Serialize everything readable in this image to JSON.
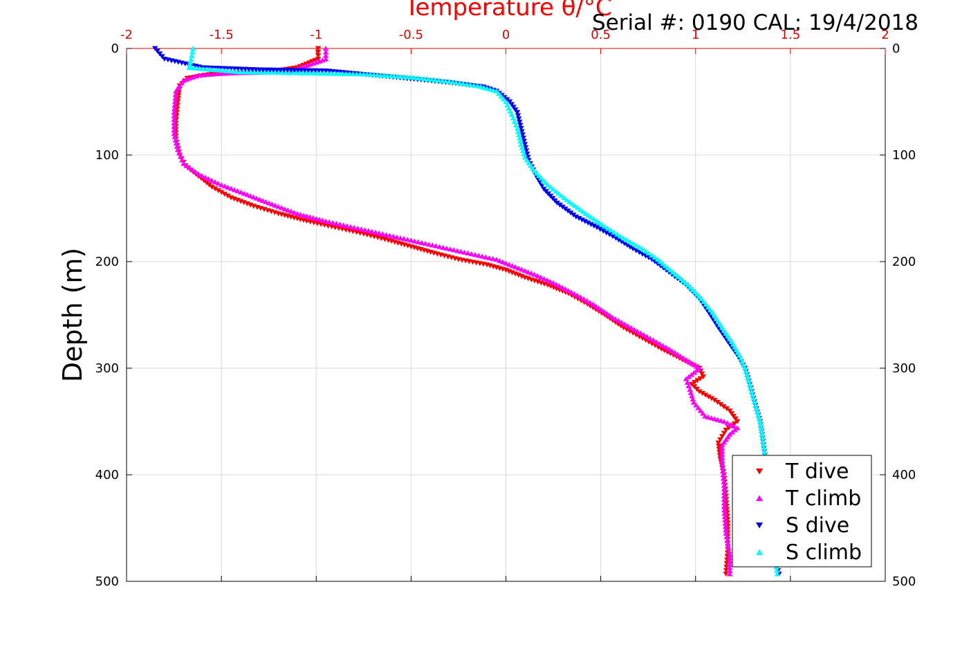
{
  "chart_data": {
    "type": "scatter",
    "title": "Temperature θ/°C",
    "annotation": "Serial #: 0190  CAL: 19/4/2018",
    "xlabel": "Temperature θ/°C",
    "ylabel": "Depth (m)",
    "xlim": [
      -2,
      2
    ],
    "ylim": [
      0,
      500
    ],
    "y_reversed": true,
    "x_axis_position": "top",
    "xticks": [
      "-2",
      "-1.5",
      "-1",
      "-0.5",
      "0",
      "0.5",
      "1",
      "1.5",
      "2"
    ],
    "yticks": [
      "0",
      "100",
      "200",
      "300",
      "400",
      "500"
    ],
    "grid": true,
    "legend_position": "bottom-right",
    "series": [
      {
        "name": "T dive",
        "marker": "triangle-down",
        "color": "#ff0000",
        "points": [
          [
            -0.99,
            0
          ],
          [
            -0.99,
            10
          ],
          [
            -1.1,
            18
          ],
          [
            -1.25,
            22
          ],
          [
            -1.55,
            24
          ],
          [
            -1.68,
            28
          ],
          [
            -1.72,
            35
          ],
          [
            -1.73,
            50
          ],
          [
            -1.74,
            70
          ],
          [
            -1.74,
            85
          ],
          [
            -1.72,
            100
          ],
          [
            -1.69,
            110
          ],
          [
            -1.62,
            120
          ],
          [
            -1.55,
            130
          ],
          [
            -1.45,
            140
          ],
          [
            -1.33,
            148
          ],
          [
            -1.2,
            155
          ],
          [
            -1.05,
            162
          ],
          [
            -0.9,
            168
          ],
          [
            -0.75,
            174
          ],
          [
            -0.62,
            180
          ],
          [
            -0.5,
            186
          ],
          [
            -0.38,
            192
          ],
          [
            -0.25,
            198
          ],
          [
            -0.1,
            203
          ],
          [
            0.0,
            208
          ],
          [
            0.1,
            215
          ],
          [
            0.22,
            222
          ],
          [
            0.33,
            230
          ],
          [
            0.43,
            240
          ],
          [
            0.52,
            250
          ],
          [
            0.62,
            262
          ],
          [
            0.72,
            272
          ],
          [
            0.82,
            282
          ],
          [
            0.93,
            292
          ],
          [
            1.02,
            300
          ],
          [
            1.04,
            308
          ],
          [
            0.98,
            315
          ],
          [
            1.02,
            322
          ],
          [
            1.1,
            330
          ],
          [
            1.18,
            340
          ],
          [
            1.22,
            350
          ],
          [
            1.16,
            358
          ],
          [
            1.12,
            370
          ],
          [
            1.13,
            385
          ],
          [
            1.15,
            400
          ],
          [
            1.16,
            420
          ],
          [
            1.17,
            445
          ],
          [
            1.17,
            470
          ],
          [
            1.16,
            493
          ]
        ]
      },
      {
        "name": "T climb",
        "marker": "triangle-up",
        "color": "#ff00ff",
        "points": [
          [
            -0.95,
            0
          ],
          [
            -0.95,
            10
          ],
          [
            -1.15,
            22
          ],
          [
            -1.45,
            23
          ],
          [
            -1.62,
            25
          ],
          [
            -1.7,
            30
          ],
          [
            -1.74,
            40
          ],
          [
            -1.75,
            60
          ],
          [
            -1.75,
            80
          ],
          [
            -1.73,
            95
          ],
          [
            -1.7,
            108
          ],
          [
            -1.62,
            118
          ],
          [
            -1.5,
            128
          ],
          [
            -1.38,
            136
          ],
          [
            -1.25,
            145
          ],
          [
            -1.1,
            155
          ],
          [
            -0.95,
            162
          ],
          [
            -0.8,
            168
          ],
          [
            -0.65,
            174
          ],
          [
            -0.5,
            180
          ],
          [
            -0.35,
            186
          ],
          [
            -0.2,
            192
          ],
          [
            -0.05,
            198
          ],
          [
            0.05,
            205
          ],
          [
            0.15,
            212
          ],
          [
            0.25,
            220
          ],
          [
            0.36,
            230
          ],
          [
            0.46,
            240
          ],
          [
            0.56,
            252
          ],
          [
            0.66,
            262
          ],
          [
            0.76,
            272
          ],
          [
            0.86,
            282
          ],
          [
            0.95,
            292
          ],
          [
            1.02,
            300
          ],
          [
            0.95,
            310
          ],
          [
            0.97,
            320
          ],
          [
            0.99,
            332
          ],
          [
            1.05,
            345
          ],
          [
            1.15,
            350
          ],
          [
            1.22,
            356
          ],
          [
            1.18,
            362
          ],
          [
            1.14,
            372
          ],
          [
            1.14,
            390
          ],
          [
            1.15,
            410
          ],
          [
            1.15,
            430
          ],
          [
            1.16,
            455
          ],
          [
            1.18,
            475
          ],
          [
            1.18,
            493
          ]
        ]
      },
      {
        "name": "S dive",
        "marker": "triangle-down",
        "color": "#0000ff",
        "points": [
          [
            -1.85,
            0
          ],
          [
            -1.8,
            10
          ],
          [
            -1.6,
            18
          ],
          [
            -1.3,
            20
          ],
          [
            -0.95,
            21
          ],
          [
            -0.65,
            26
          ],
          [
            -0.3,
            32
          ],
          [
            -0.12,
            36
          ],
          [
            -0.05,
            40
          ],
          [
            0.02,
            50
          ],
          [
            0.06,
            60
          ],
          [
            0.08,
            75
          ],
          [
            0.1,
            90
          ],
          [
            0.12,
            105
          ],
          [
            0.16,
            120
          ],
          [
            0.2,
            132
          ],
          [
            0.27,
            145
          ],
          [
            0.37,
            158
          ],
          [
            0.48,
            168
          ],
          [
            0.58,
            178
          ],
          [
            0.67,
            188
          ],
          [
            0.77,
            198
          ],
          [
            0.86,
            210
          ],
          [
            0.95,
            222
          ],
          [
            1.02,
            235
          ],
          [
            1.07,
            248
          ],
          [
            1.12,
            262
          ],
          [
            1.17,
            275
          ],
          [
            1.22,
            288
          ],
          [
            1.26,
            300
          ],
          [
            1.28,
            312
          ],
          [
            1.3,
            325
          ],
          [
            1.32,
            338
          ],
          [
            1.34,
            350
          ],
          [
            1.35,
            362
          ],
          [
            1.36,
            375
          ],
          [
            1.37,
            388
          ],
          [
            1.38,
            400
          ],
          [
            1.39,
            420
          ],
          [
            1.4,
            440
          ],
          [
            1.41,
            460
          ],
          [
            1.42,
            480
          ],
          [
            1.44,
            493
          ]
        ]
      },
      {
        "name": "S climb",
        "marker": "triangle-up",
        "color": "#00ffff",
        "points": [
          [
            -1.65,
            0
          ],
          [
            -1.66,
            10
          ],
          [
            -1.67,
            18
          ],
          [
            -1.4,
            22
          ],
          [
            -1.05,
            23
          ],
          [
            -0.75,
            24
          ],
          [
            -0.5,
            27
          ],
          [
            -0.3,
            31
          ],
          [
            -0.15,
            35
          ],
          [
            -0.05,
            40
          ],
          [
            0.0,
            50
          ],
          [
            0.03,
            62
          ],
          [
            0.06,
            75
          ],
          [
            0.08,
            90
          ],
          [
            0.1,
            102
          ],
          [
            0.15,
            115
          ],
          [
            0.22,
            128
          ],
          [
            0.32,
            142
          ],
          [
            0.42,
            155
          ],
          [
            0.52,
            167
          ],
          [
            0.62,
            178
          ],
          [
            0.72,
            188
          ],
          [
            0.8,
            198
          ],
          [
            0.88,
            210
          ],
          [
            0.96,
            222
          ],
          [
            1.03,
            235
          ],
          [
            1.09,
            248
          ],
          [
            1.14,
            262
          ],
          [
            1.19,
            275
          ],
          [
            1.23,
            288
          ],
          [
            1.26,
            300
          ],
          [
            1.28,
            312
          ],
          [
            1.3,
            325
          ],
          [
            1.32,
            338
          ],
          [
            1.34,
            350
          ],
          [
            1.35,
            362
          ],
          [
            1.36,
            375
          ],
          [
            1.37,
            388
          ],
          [
            1.38,
            400
          ],
          [
            1.39,
            420
          ],
          [
            1.4,
            440
          ],
          [
            1.41,
            460
          ],
          [
            1.42,
            480
          ],
          [
            1.43,
            493
          ]
        ]
      }
    ]
  },
  "colors": {
    "top_axis": "#e00000",
    "grid": "#d8d8d8",
    "title": "#ff0000"
  }
}
